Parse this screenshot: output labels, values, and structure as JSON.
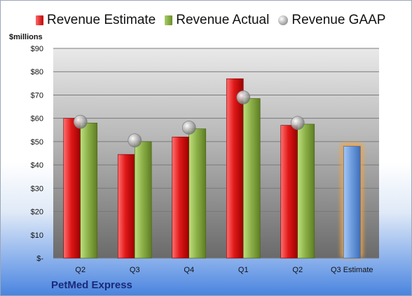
{
  "chart_data": {
    "type": "bar",
    "categories": [
      "Q2",
      "Q3",
      "Q4",
      "Q1",
      "Q2",
      "Q3 Estimate"
    ],
    "series": [
      {
        "name": "Revenue Estimate",
        "values": [
          60,
          44.5,
          52,
          77,
          null,
          null
        ],
        "color": "#c00000"
      },
      {
        "name": "Revenue Actual",
        "values": [
          58,
          50,
          55.5,
          68.5,
          57.5,
          null
        ],
        "color": "#7f9f3a"
      },
      {
        "name": "Revenue GAAP",
        "values": [
          58.5,
          50.5,
          56,
          69,
          58,
          null
        ],
        "color": "#a8a8a8"
      }
    ],
    "q2_recent_estimate": 57,
    "forecast": {
      "category": "Q3 Estimate",
      "value": 48,
      "color": "#5b8fd6",
      "glow": "#f4a340"
    },
    "ylabel": "$millions",
    "yticks": [
      "$-",
      "$10",
      "$20",
      "$30",
      "$40",
      "$50",
      "$60",
      "$70",
      "$80",
      "$90"
    ],
    "ylim": [
      0,
      90
    ],
    "grid": true,
    "legend_position": "top"
  },
  "legend": {
    "estimate": "Revenue Estimate",
    "actual": "Revenue Actual",
    "gaap": "Revenue GAAP"
  },
  "unit_label": "$millions",
  "company": "PetMed Express"
}
